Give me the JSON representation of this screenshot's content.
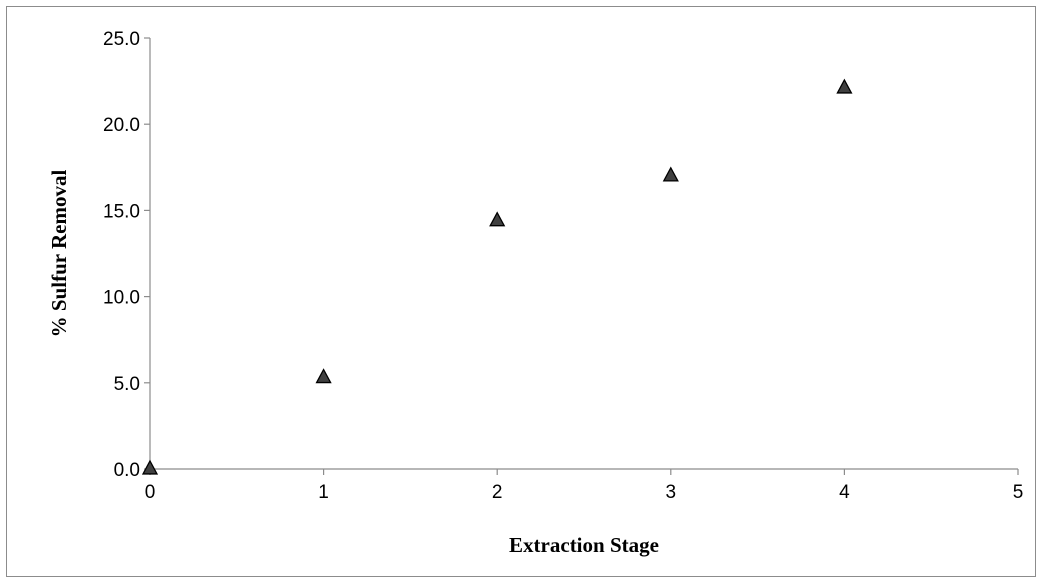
{
  "chart_data": {
    "type": "scatter",
    "title": "",
    "xlabel": "Extraction Stage",
    "ylabel": "% Sulfur Removal",
    "xlim": [
      0,
      5
    ],
    "ylim": [
      0,
      25
    ],
    "x_ticks": [
      "0",
      "1",
      "2",
      "3",
      "4",
      "5"
    ],
    "y_ticks": [
      "0.0",
      "5.0",
      "10.0",
      "15.0",
      "20.0",
      "25.0"
    ],
    "grid": false,
    "legend": "none",
    "marker": "triangle",
    "marker_color": "#404040",
    "series": [
      {
        "x": [
          0,
          1,
          2,
          3,
          4
        ],
        "y": [
          0.0,
          5.3,
          14.4,
          17.0,
          22.1
        ]
      }
    ]
  }
}
